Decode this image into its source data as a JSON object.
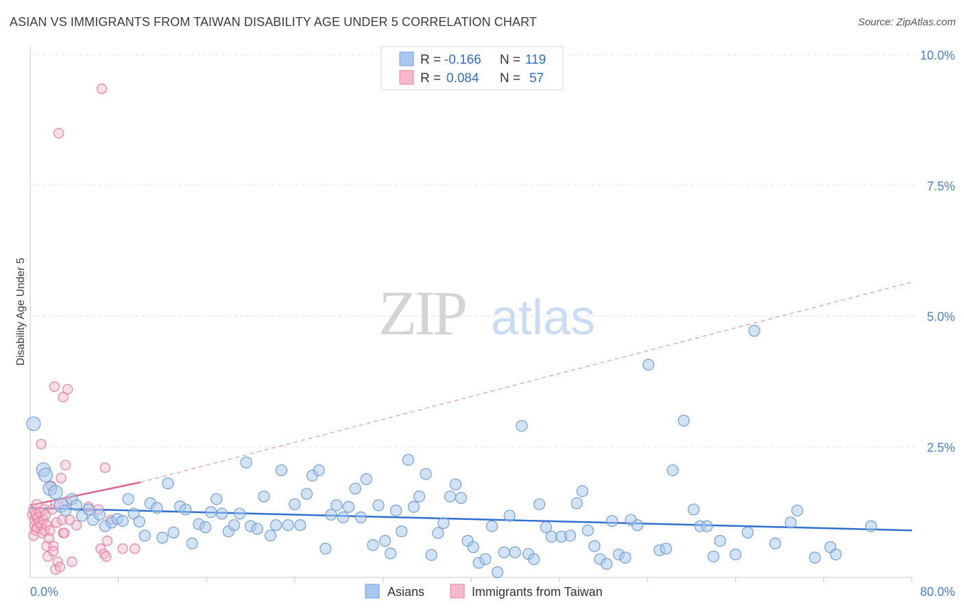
{
  "title": "ASIAN VS IMMIGRANTS FROM TAIWAN DISABILITY AGE UNDER 5 CORRELATION CHART",
  "source": "Source: ZipAtlas.com",
  "watermark": {
    "zip": "ZIP",
    "atlas": "atlas"
  },
  "colors": {
    "blue_fill": "#a8c8f0",
    "blue_stroke": "#6f9fd8",
    "blue_line": "#2e6fcf",
    "pink_fill": "#f7b8cc",
    "pink_stroke": "#ea7fa0",
    "pink_line": "#e0628c",
    "tick_label": "#4a7fd0",
    "grid": "#e3e3e3"
  },
  "legend": {
    "rows": [
      {
        "r_label": "R =",
        "r_value": "-0.166",
        "n_label": "N =",
        "n_value": "119"
      },
      {
        "r_label": "R =",
        "r_value": "0.084",
        "n_label": "N =",
        "n_value": "57"
      }
    ]
  },
  "chart_data": {
    "type": "scatter",
    "title": "ASIAN VS IMMIGRANTS FROM TAIWAN DISABILITY AGE UNDER 5 CORRELATION CHART",
    "xlabel": "",
    "ylabel": "Disability Age Under 5",
    "xlim": [
      0,
      80
    ],
    "ylim": [
      0,
      10
    ],
    "x_tick_labels": [
      "0.0%",
      "80.0%"
    ],
    "y_ticks": [
      2.5,
      5.0,
      7.5,
      10.0
    ],
    "y_tick_labels": [
      "2.5%",
      "5.0%",
      "7.5%",
      "10.0%"
    ],
    "grid": true,
    "legend_position": "bottom-center",
    "series": [
      {
        "name": "Asians",
        "r": -0.166,
        "n": 119,
        "trend": {
          "x": [
            0,
            80
          ],
          "y": [
            1.33,
            0.9
          ]
        },
        "points": [
          [
            0.3,
            2.94
          ],
          [
            1.2,
            2.06
          ],
          [
            1.4,
            1.96
          ],
          [
            1.8,
            1.7
          ],
          [
            2.3,
            1.63
          ],
          [
            2.8,
            1.38
          ],
          [
            3.2,
            1.28
          ],
          [
            3.8,
            1.5
          ],
          [
            4.2,
            1.38
          ],
          [
            4.7,
            1.18
          ],
          [
            5.3,
            1.3
          ],
          [
            5.7,
            1.1
          ],
          [
            6.3,
            1.2
          ],
          [
            6.8,
            0.98
          ],
          [
            7.4,
            1.05
          ],
          [
            7.9,
            1.12
          ],
          [
            8.4,
            1.08
          ],
          [
            8.9,
            1.5
          ],
          [
            9.4,
            1.22
          ],
          [
            9.9,
            1.07
          ],
          [
            10.4,
            0.8
          ],
          [
            10.9,
            1.42
          ],
          [
            11.5,
            1.33
          ],
          [
            12.0,
            0.76
          ],
          [
            12.5,
            1.8
          ],
          [
            13.0,
            0.86
          ],
          [
            13.6,
            1.36
          ],
          [
            14.1,
            1.3
          ],
          [
            14.7,
            0.65
          ],
          [
            15.3,
            1.02
          ],
          [
            15.9,
            0.96
          ],
          [
            16.4,
            1.25
          ],
          [
            16.9,
            1.5
          ],
          [
            17.4,
            1.22
          ],
          [
            18.0,
            0.88
          ],
          [
            18.5,
            1.0
          ],
          [
            19.0,
            1.22
          ],
          [
            19.6,
            2.2
          ],
          [
            20.0,
            0.98
          ],
          [
            20.6,
            0.93
          ],
          [
            21.2,
            1.55
          ],
          [
            21.8,
            0.8
          ],
          [
            22.3,
            1.0
          ],
          [
            22.8,
            2.05
          ],
          [
            23.4,
            1.0
          ],
          [
            24.0,
            1.4
          ],
          [
            24.5,
            1.0
          ],
          [
            25.1,
            1.6
          ],
          [
            25.6,
            1.95
          ],
          [
            26.2,
            2.05
          ],
          [
            26.8,
            0.55
          ],
          [
            27.3,
            1.2
          ],
          [
            27.8,
            1.38
          ],
          [
            28.4,
            1.15
          ],
          [
            28.9,
            1.35
          ],
          [
            29.5,
            1.7
          ],
          [
            30.0,
            1.15
          ],
          [
            30.5,
            1.88
          ],
          [
            31.1,
            0.62
          ],
          [
            31.6,
            1.38
          ],
          [
            32.2,
            0.7
          ],
          [
            32.7,
            0.46
          ],
          [
            33.2,
            1.28
          ],
          [
            33.7,
            0.88
          ],
          [
            34.3,
            2.25
          ],
          [
            34.8,
            1.35
          ],
          [
            35.3,
            1.55
          ],
          [
            35.9,
            1.98
          ],
          [
            36.4,
            0.43
          ],
          [
            37.0,
            0.85
          ],
          [
            37.5,
            1.04
          ],
          [
            38.1,
            1.55
          ],
          [
            38.6,
            1.78
          ],
          [
            39.1,
            1.52
          ],
          [
            39.7,
            0.7
          ],
          [
            40.2,
            0.58
          ],
          [
            40.7,
            0.28
          ],
          [
            41.3,
            0.35
          ],
          [
            41.9,
            0.98
          ],
          [
            42.4,
            0.1
          ],
          [
            43.0,
            0.48
          ],
          [
            43.5,
            1.18
          ],
          [
            44.0,
            0.48
          ],
          [
            44.6,
            2.9
          ],
          [
            45.2,
            0.45
          ],
          [
            45.7,
            0.35
          ],
          [
            46.2,
            1.4
          ],
          [
            46.8,
            0.96
          ],
          [
            47.3,
            0.78
          ],
          [
            48.2,
            0.78
          ],
          [
            49.0,
            0.8
          ],
          [
            49.6,
            1.42
          ],
          [
            50.1,
            1.65
          ],
          [
            50.6,
            0.9
          ],
          [
            51.2,
            0.6
          ],
          [
            51.7,
            0.35
          ],
          [
            52.3,
            0.26
          ],
          [
            52.8,
            1.08
          ],
          [
            53.4,
            0.44
          ],
          [
            54.0,
            0.38
          ],
          [
            54.5,
            1.1
          ],
          [
            55.1,
            1.0
          ],
          [
            56.1,
            4.07
          ],
          [
            57.1,
            0.52
          ],
          [
            57.7,
            0.55
          ],
          [
            58.3,
            2.05
          ],
          [
            59.3,
            3.0
          ],
          [
            60.2,
            1.3
          ],
          [
            60.8,
            0.98
          ],
          [
            61.4,
            0.98
          ],
          [
            62.0,
            0.4
          ],
          [
            62.6,
            0.7
          ],
          [
            64.0,
            0.44
          ],
          [
            65.1,
            0.86
          ],
          [
            65.7,
            4.72
          ],
          [
            67.6,
            0.65
          ],
          [
            69.0,
            1.05
          ],
          [
            69.6,
            1.28
          ],
          [
            71.2,
            0.38
          ],
          [
            72.6,
            0.58
          ],
          [
            73.1,
            0.44
          ],
          [
            76.3,
            0.98
          ]
        ]
      },
      {
        "name": "Immigrants from Taiwan",
        "r": 0.084,
        "n": 57,
        "trend_solid": {
          "x": [
            0,
            10
          ],
          "y": [
            1.38,
            1.82
          ]
        },
        "trend_dashed": {
          "x": [
            10,
            80
          ],
          "y": [
            1.82,
            5.65
          ]
        },
        "points": [
          [
            0.2,
            1.2
          ],
          [
            0.3,
            1.3
          ],
          [
            0.3,
            0.8
          ],
          [
            0.4,
            1.1
          ],
          [
            0.4,
            1.0
          ],
          [
            0.5,
            1.2
          ],
          [
            0.5,
            0.9
          ],
          [
            0.6,
            1.4
          ],
          [
            0.6,
            0.95
          ],
          [
            0.7,
            1.15
          ],
          [
            0.8,
            1.05
          ],
          [
            0.9,
            1.25
          ],
          [
            1.0,
            2.55
          ],
          [
            1.0,
            1.0
          ],
          [
            1.1,
            0.85
          ],
          [
            1.2,
            1.1
          ],
          [
            1.3,
            1.3
          ],
          [
            1.3,
            0.9
          ],
          [
            1.4,
            1.2
          ],
          [
            1.5,
            0.6
          ],
          [
            1.5,
            1.0
          ],
          [
            1.6,
            0.4
          ],
          [
            1.7,
            0.75
          ],
          [
            1.8,
            0.9
          ],
          [
            1.9,
            1.75
          ],
          [
            2.0,
            1.3
          ],
          [
            2.1,
            0.6
          ],
          [
            2.1,
            0.5
          ],
          [
            2.2,
            3.65
          ],
          [
            2.3,
            0.15
          ],
          [
            2.3,
            1.4
          ],
          [
            2.4,
            1.05
          ],
          [
            2.5,
            0.3
          ],
          [
            2.6,
            8.5
          ],
          [
            2.7,
            0.2
          ],
          [
            2.8,
            1.9
          ],
          [
            2.9,
            1.1
          ],
          [
            3.0,
            3.45
          ],
          [
            3.0,
            0.85
          ],
          [
            3.1,
            0.85
          ],
          [
            3.2,
            2.15
          ],
          [
            3.3,
            1.45
          ],
          [
            3.4,
            3.6
          ],
          [
            3.6,
            1.1
          ],
          [
            3.8,
            0.3
          ],
          [
            4.2,
            1.0
          ],
          [
            5.3,
            1.35
          ],
          [
            6.2,
            1.3
          ],
          [
            6.4,
            0.55
          ],
          [
            6.5,
            9.35
          ],
          [
            6.7,
            0.45
          ],
          [
            6.8,
            2.1
          ],
          [
            6.9,
            0.4
          ],
          [
            7.0,
            0.7
          ],
          [
            7.3,
            1.1
          ],
          [
            8.4,
            0.55
          ],
          [
            9.5,
            0.55
          ]
        ]
      }
    ]
  }
}
